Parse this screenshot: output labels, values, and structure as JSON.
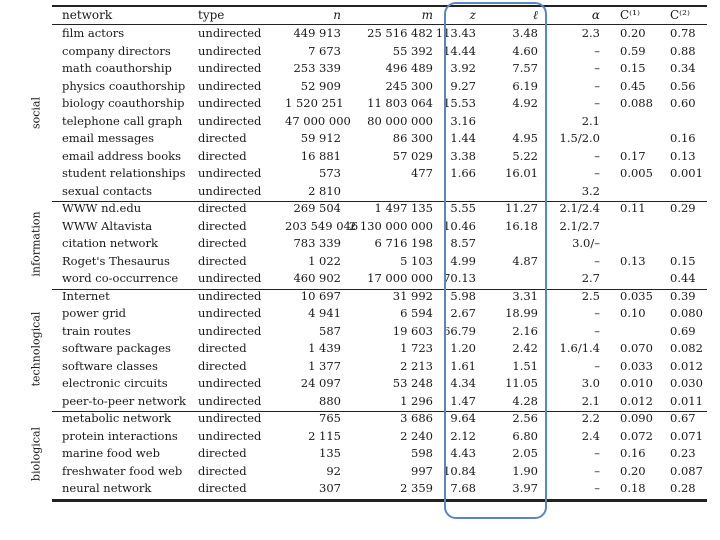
{
  "table": {
    "columns": [
      {
        "key": "network",
        "label": "network",
        "align": "l"
      },
      {
        "key": "type",
        "label": "type",
        "align": "l"
      },
      {
        "key": "n",
        "label": "n",
        "align": "r"
      },
      {
        "key": "m",
        "label": "m",
        "align": "r"
      },
      {
        "key": "z",
        "label": "z",
        "align": "r"
      },
      {
        "key": "l",
        "label": "ℓ",
        "align": "r"
      },
      {
        "key": "alpha",
        "label": "α",
        "align": "r"
      },
      {
        "key": "c1",
        "label": "C⁽¹⁾",
        "align": "l"
      },
      {
        "key": "c2",
        "label": "C⁽²⁾",
        "align": "l"
      }
    ],
    "groups": [
      {
        "label": "social",
        "rows": [
          [
            "film actors",
            "undirected",
            "449 913",
            "25 516 482",
            "113.43",
            "3.48",
            "2.3",
            "0.20",
            "0.78"
          ],
          [
            "company directors",
            "undirected",
            "7 673",
            "55 392",
            "14.44",
            "4.60",
            "–",
            "0.59",
            "0.88"
          ],
          [
            "math coauthorship",
            "undirected",
            "253 339",
            "496 489",
            "3.92",
            "7.57",
            "–",
            "0.15",
            "0.34"
          ],
          [
            "physics coauthorship",
            "undirected",
            "52 909",
            "245 300",
            "9.27",
            "6.19",
            "–",
            "0.45",
            "0.56"
          ],
          [
            "biology coauthorship",
            "undirected",
            "1 520 251",
            "11 803 064",
            "15.53",
            "4.92",
            "–",
            "0.088",
            "0.60"
          ],
          [
            "telephone call graph",
            "undirected",
            "47 000 000",
            "80 000 000",
            "3.16",
            "",
            "2.1",
            "",
            ""
          ],
          [
            "email messages",
            "directed",
            "59 912",
            "86 300",
            "1.44",
            "4.95",
            "1.5/2.0",
            "",
            "0.16"
          ],
          [
            "email address books",
            "directed",
            "16 881",
            "57 029",
            "3.38",
            "5.22",
            "–",
            "0.17",
            "0.13"
          ],
          [
            "student relationships",
            "undirected",
            "573",
            "477",
            "1.66",
            "16.01",
            "–",
            "0.005",
            "0.001"
          ],
          [
            "sexual contacts",
            "undirected",
            "2 810",
            "",
            "",
            "",
            "3.2",
            "",
            ""
          ]
        ]
      },
      {
        "label": "information",
        "rows": [
          [
            "WWW nd.edu",
            "directed",
            "269 504",
            "1 497 135",
            "5.55",
            "11.27",
            "2.1/2.4",
            "0.11",
            "0.29"
          ],
          [
            "WWW Altavista",
            "directed",
            "203 549 046",
            "2 130 000 000",
            "10.46",
            "16.18",
            "2.1/2.7",
            "",
            ""
          ],
          [
            "citation network",
            "directed",
            "783 339",
            "6 716 198",
            "8.57",
            "",
            "3.0/–",
            "",
            ""
          ],
          [
            "Roget's Thesaurus",
            "directed",
            "1 022",
            "5 103",
            "4.99",
            "4.87",
            "–",
            "0.13",
            "0.15"
          ],
          [
            "word co-occurrence",
            "undirected",
            "460 902",
            "17 000 000",
            "70.13",
            "",
            "2.7",
            "",
            "0.44"
          ]
        ]
      },
      {
        "label": "technological",
        "rows": [
          [
            "Internet",
            "undirected",
            "10 697",
            "31 992",
            "5.98",
            "3.31",
            "2.5",
            "0.035",
            "0.39"
          ],
          [
            "power grid",
            "undirected",
            "4 941",
            "6 594",
            "2.67",
            "18.99",
            "–",
            "0.10",
            "0.080"
          ],
          [
            "train routes",
            "undirected",
            "587",
            "19 603",
            "66.79",
            "2.16",
            "–",
            "",
            "0.69"
          ],
          [
            "software packages",
            "directed",
            "1 439",
            "1 723",
            "1.20",
            "2.42",
            "1.6/1.4",
            "0.070",
            "0.082"
          ],
          [
            "software classes",
            "directed",
            "1 377",
            "2 213",
            "1.61",
            "1.51",
            "–",
            "0.033",
            "0.012"
          ],
          [
            "electronic circuits",
            "undirected",
            "24 097",
            "53 248",
            "4.34",
            "11.05",
            "3.0",
            "0.010",
            "0.030"
          ],
          [
            "peer-to-peer network",
            "undirected",
            "880",
            "1 296",
            "1.47",
            "4.28",
            "2.1",
            "0.012",
            "0.011"
          ]
        ]
      },
      {
        "label": "biological",
        "rows": [
          [
            "metabolic network",
            "undirected",
            "765",
            "3 686",
            "9.64",
            "2.56",
            "2.2",
            "0.090",
            "0.67"
          ],
          [
            "protein interactions",
            "undirected",
            "2 115",
            "2 240",
            "2.12",
            "6.80",
            "2.4",
            "0.072",
            "0.071"
          ],
          [
            "marine food web",
            "directed",
            "135",
            "598",
            "4.43",
            "2.05",
            "–",
            "0.16",
            "0.23"
          ],
          [
            "freshwater food web",
            "directed",
            "92",
            "997",
            "10.84",
            "1.90",
            "–",
            "0.20",
            "0.087"
          ],
          [
            "neural network",
            "directed",
            "307",
            "2 359",
            "7.68",
            "3.97",
            "–",
            "0.18",
            "0.28"
          ]
        ]
      }
    ]
  },
  "highlight": {
    "columns": [
      "z",
      "ℓ"
    ],
    "color": "#5b86c4"
  }
}
